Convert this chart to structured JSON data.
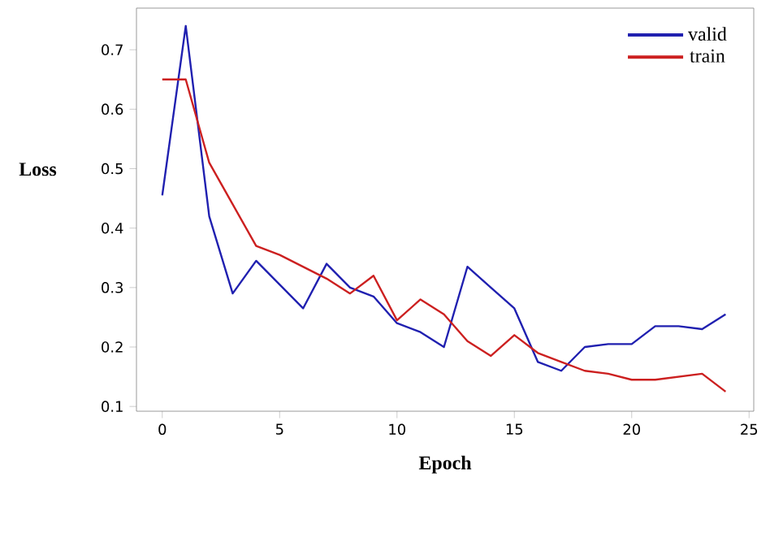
{
  "chart_data": {
    "type": "line",
    "xlabel": "Epoch",
    "ylabel": "Loss",
    "x": [
      0,
      1,
      2,
      3,
      4,
      5,
      6,
      7,
      8,
      9,
      10,
      11,
      12,
      13,
      14,
      15,
      16,
      17,
      18,
      19,
      20,
      21,
      22,
      23,
      24
    ],
    "series": [
      {
        "name": "valid",
        "color": "#2020b0",
        "values": [
          0.455,
          0.74,
          0.42,
          0.29,
          0.345,
          0.305,
          0.265,
          0.34,
          0.3,
          0.285,
          0.24,
          0.225,
          0.2,
          0.335,
          0.3,
          0.265,
          0.175,
          0.16,
          0.2,
          0.205,
          0.205,
          0.235,
          0.235,
          0.23,
          0.255
        ]
      },
      {
        "name": "train",
        "color": "#cc2020",
        "values": [
          0.65,
          0.65,
          0.51,
          0.44,
          0.37,
          0.355,
          0.335,
          0.315,
          0.29,
          0.32,
          0.245,
          0.28,
          0.255,
          0.21,
          0.185,
          0.22,
          0.19,
          0.175,
          0.16,
          0.155,
          0.145,
          0.145,
          0.15,
          0.155,
          0.125
        ]
      }
    ],
    "xlim": [
      -1.1,
      25.2
    ],
    "ylim": [
      0.092,
      0.77
    ],
    "xticks": [
      0,
      5,
      10,
      15,
      20,
      25
    ],
    "yticks": [
      0.1,
      0.2,
      0.3,
      0.4,
      0.5,
      0.6,
      0.7
    ],
    "legend": "top right",
    "grid": false
  }
}
